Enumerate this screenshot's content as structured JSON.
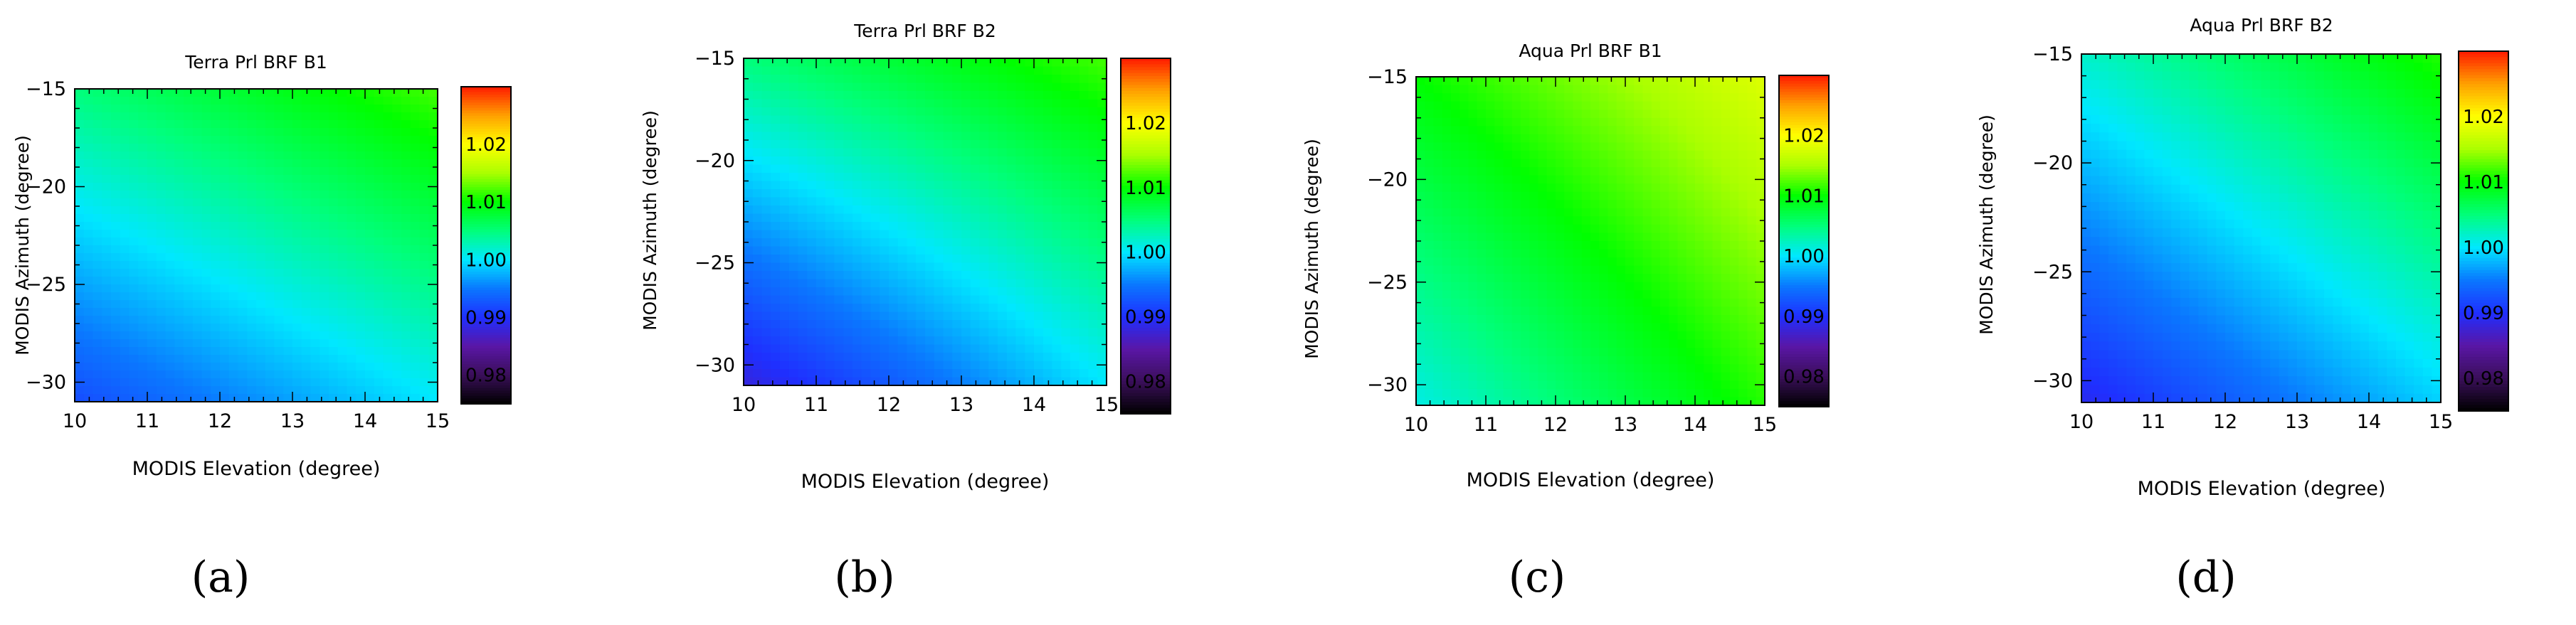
{
  "figure": {
    "colorbar_ticks": [
      0.98,
      0.99,
      1.0,
      1.01,
      1.02
    ],
    "colorbar_tick_labels": [
      "0.98",
      "0.99",
      "1.00",
      "1.01",
      "1.02"
    ],
    "colorbar_range": [
      0.975,
      1.03
    ],
    "colormap": [
      "#000000",
      "#3a0f5a",
      "#5a16a6",
      "#1f2fff",
      "#0a78ff",
      "#00e8ff",
      "#00ff7a",
      "#00ff00",
      "#aaff00",
      "#ffff00",
      "#ffa000",
      "#ff1a00"
    ]
  },
  "chart_data": [
    {
      "type": "heatmap",
      "title": "Terra Prl BRF B1",
      "xlabel": "MODIS Elevation (degree)",
      "ylabel": "MODIS Azimuth (degree)",
      "xlim": [
        10,
        15
      ],
      "ylim": [
        -31,
        -15
      ],
      "x_ticks": [
        10,
        11,
        12,
        13,
        14,
        15
      ],
      "x_tick_labels": [
        "10",
        "11",
        "12",
        "13",
        "14",
        "15"
      ],
      "y_ticks": [
        -15,
        -20,
        -25,
        -30
      ],
      "y_tick_labels": [
        "−15",
        "−20",
        "−25",
        "−30"
      ],
      "corner_values": {
        "x10_ym31": 0.992,
        "x15_ym31": 1.0,
        "x10_ym15": 1.005,
        "x15_ym15": 1.012
      },
      "caption": "(a)"
    },
    {
      "type": "heatmap",
      "title": "Terra Prl BRF B2",
      "xlabel": "MODIS Elevation (degree)",
      "ylabel": "MODIS Azimuth (degree)",
      "xlim": [
        10,
        15
      ],
      "ylim": [
        -31,
        -15
      ],
      "x_ticks": [
        10,
        11,
        12,
        13,
        14,
        15
      ],
      "x_tick_labels": [
        "10",
        "11",
        "12",
        "13",
        "14",
        "15"
      ],
      "y_ticks": [
        -15,
        -20,
        -25,
        -30
      ],
      "y_tick_labels": [
        "−15",
        "−20",
        "−25",
        "−30"
      ],
      "corner_values": {
        "x10_ym31": 0.988,
        "x15_ym31": 1.0,
        "x10_ym15": 1.005,
        "x15_ym15": 1.012
      },
      "caption": "(b)"
    },
    {
      "type": "heatmap",
      "title": "Aqua Prl BRF B1",
      "xlabel": "MODIS Elevation (degree)",
      "ylabel": "MODIS Azimuth (degree)",
      "xlim": [
        10,
        15
      ],
      "ylim": [
        -31,
        -15
      ],
      "x_ticks": [
        10,
        11,
        12,
        13,
        14,
        15
      ],
      "x_tick_labels": [
        "10",
        "11",
        "12",
        "13",
        "14",
        "15"
      ],
      "y_ticks": [
        -15,
        -20,
        -25,
        -30
      ],
      "y_tick_labels": [
        "−15",
        "−20",
        "−25",
        "−30"
      ],
      "corner_values": {
        "x10_ym31": 1.001,
        "x15_ym31": 1.011,
        "x10_ym15": 1.01,
        "x15_ym15": 1.018
      },
      "caption": "(c)"
    },
    {
      "type": "heatmap",
      "title": "Aqua Prl BRF B2",
      "xlabel": "MODIS Elevation (degree)",
      "ylabel": "MODIS Azimuth (degree)",
      "xlim": [
        10,
        15
      ],
      "ylim": [
        -31,
        -15
      ],
      "x_ticks": [
        10,
        11,
        12,
        13,
        14,
        15
      ],
      "x_tick_labels": [
        "10",
        "11",
        "12",
        "13",
        "14",
        "15"
      ],
      "y_ticks": [
        -15,
        -20,
        -25,
        -30
      ],
      "y_tick_labels": [
        "−15",
        "−20",
        "−25",
        "−30"
      ],
      "corner_values": {
        "x10_ym31": 0.989,
        "x15_ym31": 0.999,
        "x10_ym15": 1.002,
        "x15_ym15": 1.011
      },
      "caption": "(d)"
    }
  ]
}
